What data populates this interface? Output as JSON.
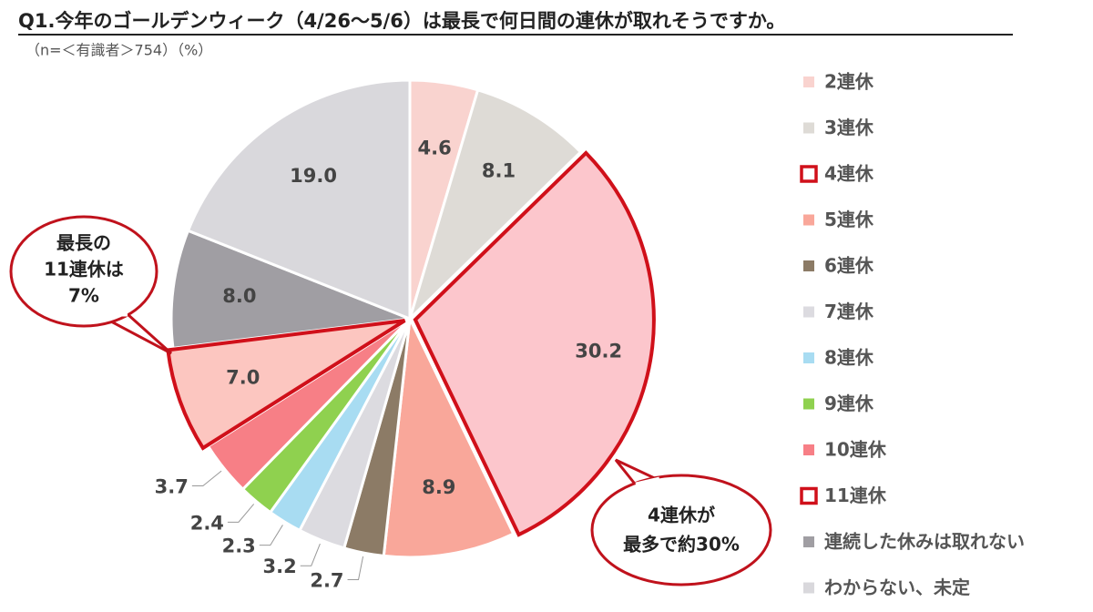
{
  "chart_data": {
    "type": "pie",
    "title": "Q1.今年のゴールデンウィーク（4/26〜5/6）は最長で何日間の連休が取れそうですか。",
    "subtitle": "（n=＜有識者＞754）（%）",
    "categories": [
      "2連休",
      "3連休",
      "4連休",
      "5連休",
      "6連休",
      "7連休",
      "8連休",
      "9連休",
      "10連休",
      "11連休",
      "連続した休みは取れない",
      "わからない、未定"
    ],
    "values": [
      4.6,
      8.1,
      30.2,
      8.9,
      2.7,
      3.2,
      2.3,
      2.4,
      3.7,
      7.0,
      8.0,
      19.0
    ],
    "value_labels": [
      "4.6",
      "8.1",
      "30.2",
      "8.9",
      "2.7",
      "3.2",
      "2.3",
      "2.4",
      "3.7",
      "7.0",
      "8.0",
      "19.0"
    ],
    "colors": [
      "#f9d3cf",
      "#dedbd6",
      "#fcc6cc",
      "#f9a79a",
      "#8c7b66",
      "#dcdbe0",
      "#a8dcf2",
      "#8fd14f",
      "#f77f86",
      "#fcc6c0",
      "#a09ea3",
      "#d9d8dc"
    ],
    "highlighted": [
      false,
      false,
      true,
      false,
      false,
      false,
      false,
      false,
      false,
      true,
      false,
      false
    ],
    "highlight_color": "#d0101a",
    "annotations": [
      {
        "lines": [
          "最長の",
          "11連休は",
          "7%"
        ]
      },
      {
        "lines": [
          "4連休が",
          "最多で約30%"
        ]
      }
    ]
  }
}
